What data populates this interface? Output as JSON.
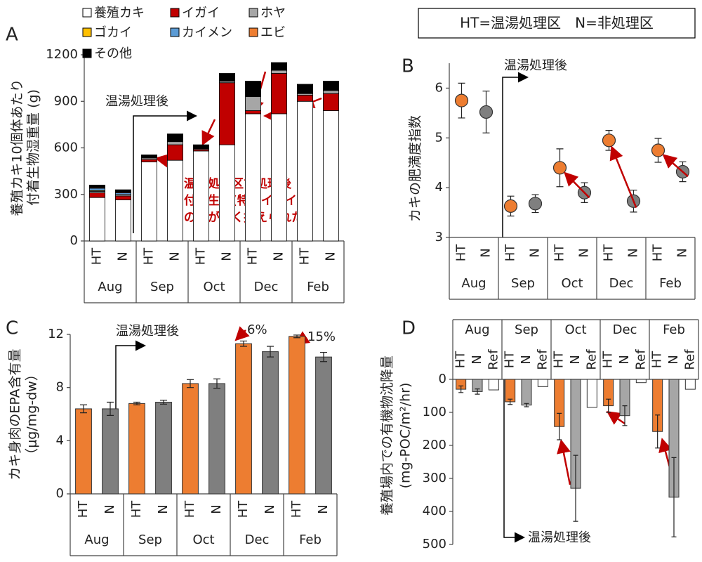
{
  "chart_data": [
    {
      "type": "stacked_bar",
      "panel_label": "A",
      "ylabel": [
        "養殖カキ10個体あたり",
        "付着生物湿重量 (g)"
      ],
      "categories": [
        "HT",
        "N",
        "HT",
        "N",
        "HT",
        "N",
        "HT",
        "N",
        "HT",
        "N"
      ],
      "groups": [
        "Aug",
        "Sep",
        "Oct",
        "Dec",
        "Feb"
      ],
      "series": [
        {
          "name": "養殖カキ",
          "color": "#ffffff",
          "values": [
            280,
            265,
            510,
            520,
            580,
            620,
            820,
            820,
            900,
            840
          ]
        },
        {
          "name": "イガイ",
          "color": "#c00000",
          "values": [
            30,
            25,
            15,
            100,
            10,
            400,
            20,
            260,
            40,
            110
          ]
        },
        {
          "name": "ホヤ",
          "color": "#a6a6a6",
          "values": [
            10,
            10,
            10,
            20,
            5,
            10,
            90,
            20,
            10,
            20
          ]
        },
        {
          "name": "ゴカイ",
          "color": "#ffc000",
          "values": [
            5,
            0,
            0,
            0,
            0,
            0,
            0,
            0,
            0,
            0
          ]
        },
        {
          "name": "カイメン",
          "color": "#5b9bd5",
          "values": [
            15,
            10,
            0,
            0,
            0,
            0,
            0,
            0,
            0,
            0
          ]
        },
        {
          "name": "エビ",
          "color": "#ed7d31",
          "values": [
            5,
            5,
            0,
            0,
            0,
            0,
            0,
            0,
            0,
            0
          ]
        },
        {
          "name": "その他",
          "color": "#000000",
          "values": [
            15,
            15,
            20,
            50,
            25,
            50,
            100,
            50,
            60,
            60
          ]
        }
      ],
      "ylim": [
        0,
        1200
      ],
      "yticks": [
        0,
        300,
        600,
        900,
        1200
      ],
      "annotations": [
        "温湯処理後",
        "温湯処理区で処理後",
        "付着生物(特にイガイ)",
        "の量が低く抑えられた"
      ]
    },
    {
      "type": "dot",
      "panel_label": "B",
      "ylabel": [
        "カキの肥満度指数"
      ],
      "categories": [
        "HT",
        "N",
        "HT",
        "N",
        "HT",
        "N",
        "HT",
        "N",
        "HT",
        "N"
      ],
      "groups": [
        "Aug",
        "Sep",
        "Oct",
        "Dec",
        "Feb"
      ],
      "values": [
        5.75,
        5.52,
        3.63,
        3.68,
        4.4,
        3.9,
        4.95,
        3.73,
        4.75,
        4.32
      ],
      "errors": [
        0.35,
        0.42,
        0.2,
        0.18,
        0.38,
        0.2,
        0.2,
        0.22,
        0.24,
        0.2
      ],
      "colors": [
        "#ed7d31",
        "#7f7f7f",
        "#ed7d31",
        "#7f7f7f",
        "#ed7d31",
        "#7f7f7f",
        "#ed7d31",
        "#7f7f7f",
        "#ed7d31",
        "#7f7f7f"
      ],
      "ylim": [
        3,
        6.5
      ],
      "yticks": [
        3,
        4,
        5,
        6
      ],
      "annotations": [
        "温湯処理後"
      ]
    },
    {
      "type": "bar",
      "panel_label": "C",
      "ylabel": [
        "カキ身肉のEPA含有量",
        "（μg/mg-dw）"
      ],
      "categories": [
        "HT",
        "N",
        "HT",
        "N",
        "HT",
        "N",
        "HT",
        "N",
        "HT",
        "N"
      ],
      "groups": [
        "Aug",
        "Sep",
        "Oct",
        "Dec",
        "Feb"
      ],
      "values": [
        6.4,
        6.4,
        6.8,
        6.9,
        8.3,
        8.3,
        11.3,
        10.7,
        11.85,
        10.3
      ],
      "errors": [
        0.3,
        0.5,
        0.1,
        0.15,
        0.3,
        0.35,
        0.2,
        0.4,
        0.1,
        0.35
      ],
      "colors": [
        "#ed7d31",
        "#7f7f7f",
        "#ed7d31",
        "#7f7f7f",
        "#ed7d31",
        "#7f7f7f",
        "#ed7d31",
        "#7f7f7f",
        "#ed7d31",
        "#7f7f7f"
      ],
      "ylim": [
        0,
        12
      ],
      "yticks": [
        0,
        4,
        8,
        12
      ],
      "annotations": [
        "温湯処理後",
        "6%",
        "15%"
      ]
    },
    {
      "type": "bar",
      "panel_label": "D",
      "ylabel": [
        "養殖場内での有機物沈降量",
        "(mg-POC/m²/hr)"
      ],
      "categories": [
        "HT",
        "N",
        "Ref",
        "HT",
        "N",
        "Ref",
        "HT",
        "N",
        "Ref",
        "HT",
        "N",
        "Ref",
        "HT",
        "N",
        "Ref"
      ],
      "groups": [
        "Aug",
        "Sep",
        "Oct",
        "Dec",
        "Feb"
      ],
      "values": [
        30,
        37,
        32,
        68,
        78,
        22,
        143,
        330,
        85,
        80,
        110,
        10,
        158,
        357,
        30
      ],
      "errors": [
        10,
        8,
        null,
        8,
        5,
        null,
        40,
        100,
        null,
        20,
        30,
        null,
        50,
        120,
        null
      ],
      "colors": [
        "#ed7d31",
        "#a6a6a6",
        "#ffffff",
        "#ed7d31",
        "#a6a6a6",
        "#ffffff",
        "#ed7d31",
        "#a6a6a6",
        "#ffffff",
        "#ed7d31",
        "#a6a6a6",
        "#ffffff",
        "#ed7d31",
        "#a6a6a6",
        "#ffffff"
      ],
      "ylim": [
        0,
        500
      ],
      "yticks": [
        0,
        100,
        200,
        300,
        400,
        500
      ],
      "y_inverted": true,
      "x_axis_position": "top",
      "annotations": [
        "温湯処理後"
      ]
    }
  ],
  "header": "HT=温湯処理区　N=非処理区"
}
